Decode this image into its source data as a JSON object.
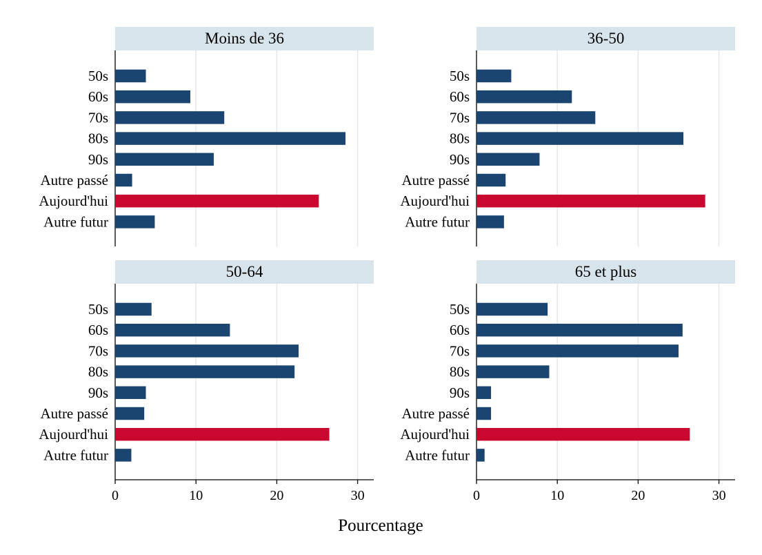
{
  "chart_data": {
    "type": "bar",
    "orientation": "horizontal",
    "xlabel": "Pourcentage",
    "xlim": [
      0,
      32
    ],
    "xticks": [
      0,
      10,
      20,
      30
    ],
    "grid": true,
    "categories": [
      "50s",
      "60s",
      "70s",
      "80s",
      "90s",
      "Autre passé",
      "Aujourd'hui",
      "Autre futur"
    ],
    "highlight_category": "Aujourd'hui",
    "colors": {
      "bar": "#1a4570",
      "highlight": "#c8082f",
      "strip": "#d8e4eb",
      "grid": "#e6e6e6"
    },
    "panels": [
      {
        "title": "Moins de 36",
        "values": [
          3.8,
          9.3,
          13.5,
          28.5,
          12.2,
          2.1,
          25.2,
          4.9
        ]
      },
      {
        "title": "36-50",
        "values": [
          4.3,
          11.8,
          14.7,
          25.6,
          7.8,
          3.6,
          28.3,
          3.4
        ]
      },
      {
        "title": "50-64",
        "values": [
          4.5,
          14.2,
          22.7,
          22.2,
          3.8,
          3.6,
          26.5,
          2.0
        ]
      },
      {
        "title": "65 et plus",
        "values": [
          8.8,
          25.5,
          25.0,
          9.0,
          1.8,
          1.8,
          26.4,
          1.0
        ]
      }
    ]
  }
}
